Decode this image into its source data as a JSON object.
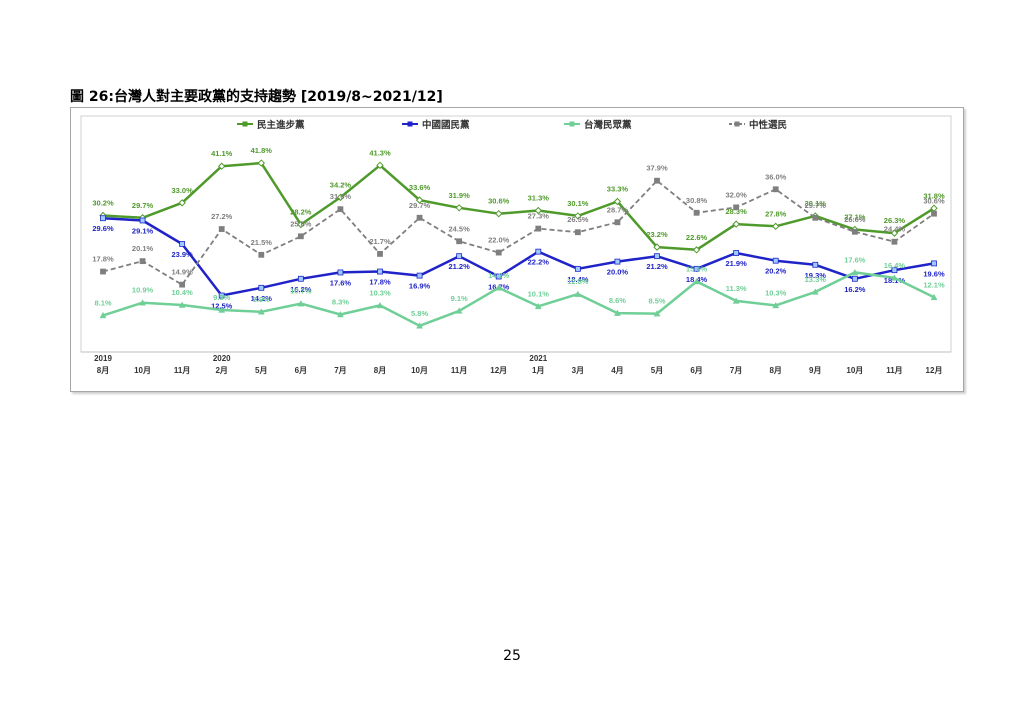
{
  "page": {
    "title": "圖 26:台灣人對主要政黨的支持趨勢  [2019/8~2021/12]",
    "page_number": "25"
  },
  "chart_data": {
    "type": "line",
    "title": "",
    "x": [
      "8月",
      "10月",
      "11月",
      "2月",
      "5月",
      "6月",
      "7月",
      "8月",
      "10月",
      "11月",
      "12月",
      "1月",
      "3月",
      "4月",
      "5月",
      "6月",
      "7月",
      "8月",
      "9月",
      "10月",
      "11月",
      "12月"
    ],
    "year_labels": [
      {
        "index": 0,
        "label": "2019"
      },
      {
        "index": 3,
        "label": "2020"
      },
      {
        "index": 11,
        "label": "2021"
      }
    ],
    "series": [
      {
        "name": "民主進步黨",
        "color": "#4e9a2a",
        "dash": false,
        "marker": "diamond",
        "values": [
          30.2,
          29.7,
          33.0,
          41.1,
          41.8,
          28.2,
          34.2,
          41.3,
          33.6,
          31.9,
          30.6,
          31.3,
          30.1,
          33.3,
          23.2,
          22.6,
          28.3,
          27.8,
          30.1,
          27.1,
          26.3,
          31.8
        ]
      },
      {
        "name": "中國國民黨",
        "color": "#1f23c8",
        "dash": false,
        "marker": "square",
        "values": [
          29.6,
          29.1,
          23.9,
          12.5,
          14.2,
          16.2,
          17.6,
          17.8,
          16.9,
          21.2,
          16.7,
          22.2,
          18.4,
          20.0,
          21.2,
          18.4,
          21.9,
          20.2,
          19.3,
          16.2,
          18.1,
          19.6
        ]
      },
      {
        "name": "台灣民眾黨",
        "color": "#6fcf97",
        "dash": false,
        "marker": "triangle",
        "values": [
          8.1,
          10.9,
          10.4,
          9.3,
          8.9,
          10.7,
          8.3,
          10.3,
          5.8,
          9.1,
          14.2,
          10.1,
          12.8,
          8.6,
          8.5,
          15.6,
          11.3,
          10.3,
          13.3,
          17.6,
          16.4,
          12.1
        ]
      },
      {
        "name": "中性選民",
        "color": "#7f7f7f",
        "dash": true,
        "marker": "square",
        "values": [
          17.8,
          20.1,
          14.9,
          27.2,
          21.5,
          25.6,
          31.6,
          21.7,
          29.7,
          24.5,
          22.0,
          27.3,
          26.5,
          28.7,
          37.9,
          30.8,
          32.0,
          36.0,
          29.7,
          26.6,
          24.4,
          30.6
        ]
      }
    ],
    "ylim": [
      0,
      50
    ],
    "grid": false,
    "legend_position": "top"
  }
}
